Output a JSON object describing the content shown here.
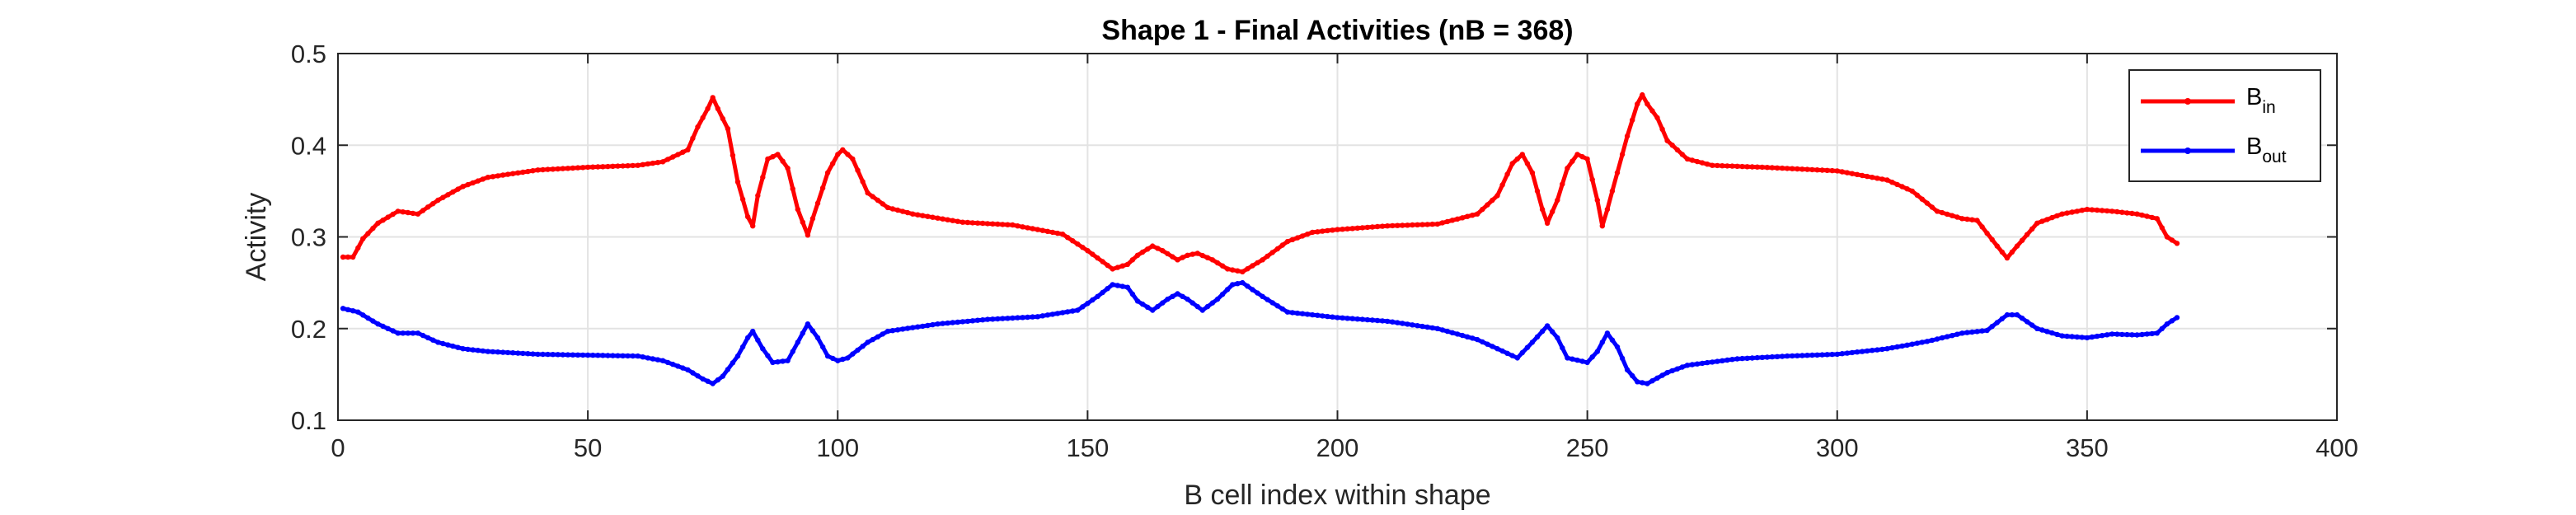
{
  "chart_data": {
    "type": "line",
    "title": "Shape 1 - Final Activities (nB = 368)",
    "xlabel": "B cell index within shape",
    "ylabel": "Activity",
    "xlim": [
      0,
      400
    ],
    "ylim": [
      0.1,
      0.5
    ],
    "xticks": [
      0,
      50,
      100,
      150,
      200,
      250,
      300,
      350,
      400
    ],
    "yticks": [
      0.1,
      0.2,
      0.3,
      0.4,
      0.5
    ],
    "xtick_labels": [
      "0",
      "50",
      "100",
      "150",
      "200",
      "250",
      "300",
      "350",
      "400"
    ],
    "ytick_labels": [
      "0.1",
      "0.2",
      "0.3",
      "0.4",
      "0.5"
    ],
    "grid": true,
    "legend_position": "top-right",
    "x_range": [
      1,
      368
    ],
    "series": [
      {
        "legend_main": "B",
        "legend_sub": "in",
        "color": "#ff0000",
        "control_points": [
          [
            1,
            0.278
          ],
          [
            3,
            0.278
          ],
          [
            5,
            0.298
          ],
          [
            8,
            0.315
          ],
          [
            12,
            0.328
          ],
          [
            16,
            0.325
          ],
          [
            20,
            0.34
          ],
          [
            25,
            0.355
          ],
          [
            30,
            0.365
          ],
          [
            40,
            0.373
          ],
          [
            50,
            0.376
          ],
          [
            60,
            0.378
          ],
          [
            65,
            0.382
          ],
          [
            70,
            0.395
          ],
          [
            72,
            0.42
          ],
          [
            74,
            0.44
          ],
          [
            75,
            0.452
          ],
          [
            76,
            0.44
          ],
          [
            78,
            0.418
          ],
          [
            80,
            0.36
          ],
          [
            82,
            0.322
          ],
          [
            83,
            0.312
          ],
          [
            84,
            0.345
          ],
          [
            86,
            0.385
          ],
          [
            88,
            0.39
          ],
          [
            90,
            0.375
          ],
          [
            92,
            0.33
          ],
          [
            94,
            0.302
          ],
          [
            95,
            0.32
          ],
          [
            98,
            0.37
          ],
          [
            100,
            0.39
          ],
          [
            101,
            0.395
          ],
          [
            103,
            0.385
          ],
          [
            106,
            0.348
          ],
          [
            110,
            0.332
          ],
          [
            115,
            0.325
          ],
          [
            125,
            0.316
          ],
          [
            135,
            0.313
          ],
          [
            145,
            0.303
          ],
          [
            150,
            0.285
          ],
          [
            155,
            0.265
          ],
          [
            158,
            0.27
          ],
          [
            160,
            0.28
          ],
          [
            163,
            0.29
          ],
          [
            165,
            0.285
          ],
          [
            168,
            0.275
          ],
          [
            170,
            0.28
          ],
          [
            172,
            0.282
          ],
          [
            175,
            0.275
          ],
          [
            178,
            0.265
          ],
          [
            181,
            0.262
          ],
          [
            185,
            0.275
          ],
          [
            190,
            0.295
          ],
          [
            195,
            0.305
          ],
          [
            200,
            0.308
          ],
          [
            210,
            0.312
          ],
          [
            220,
            0.314
          ],
          [
            228,
            0.325
          ],
          [
            232,
            0.345
          ],
          [
            235,
            0.38
          ],
          [
            237,
            0.39
          ],
          [
            239,
            0.37
          ],
          [
            241,
            0.33
          ],
          [
            242,
            0.315
          ],
          [
            244,
            0.34
          ],
          [
            246,
            0.375
          ],
          [
            248,
            0.39
          ],
          [
            250,
            0.385
          ],
          [
            252,
            0.34
          ],
          [
            253,
            0.312
          ],
          [
            254,
            0.33
          ],
          [
            256,
            0.37
          ],
          [
            258,
            0.41
          ],
          [
            260,
            0.445
          ],
          [
            261,
            0.455
          ],
          [
            262,
            0.445
          ],
          [
            264,
            0.43
          ],
          [
            266,
            0.405
          ],
          [
            270,
            0.385
          ],
          [
            275,
            0.378
          ],
          [
            285,
            0.376
          ],
          [
            300,
            0.372
          ],
          [
            310,
            0.362
          ],
          [
            315,
            0.35
          ],
          [
            320,
            0.328
          ],
          [
            325,
            0.32
          ],
          [
            328,
            0.318
          ],
          [
            332,
            0.29
          ],
          [
            334,
            0.277
          ],
          [
            336,
            0.29
          ],
          [
            340,
            0.315
          ],
          [
            345,
            0.325
          ],
          [
            350,
            0.33
          ],
          [
            355,
            0.328
          ],
          [
            360,
            0.325
          ],
          [
            364,
            0.32
          ],
          [
            366,
            0.3
          ],
          [
            368,
            0.293
          ]
        ]
      },
      {
        "legend_main": "B",
        "legend_sub": "out",
        "color": "#0000ff",
        "control_points": [
          [
            1,
            0.222
          ],
          [
            4,
            0.218
          ],
          [
            8,
            0.205
          ],
          [
            12,
            0.195
          ],
          [
            16,
            0.195
          ],
          [
            20,
            0.185
          ],
          [
            25,
            0.178
          ],
          [
            30,
            0.175
          ],
          [
            40,
            0.172
          ],
          [
            50,
            0.171
          ],
          [
            60,
            0.17
          ],
          [
            65,
            0.165
          ],
          [
            70,
            0.155
          ],
          [
            73,
            0.145
          ],
          [
            75,
            0.14
          ],
          [
            77,
            0.148
          ],
          [
            80,
            0.17
          ],
          [
            82,
            0.19
          ],
          [
            83,
            0.197
          ],
          [
            85,
            0.178
          ],
          [
            87,
            0.163
          ],
          [
            90,
            0.165
          ],
          [
            92,
            0.185
          ],
          [
            94,
            0.205
          ],
          [
            96,
            0.19
          ],
          [
            98,
            0.17
          ],
          [
            100,
            0.165
          ],
          [
            102,
            0.168
          ],
          [
            106,
            0.185
          ],
          [
            110,
            0.197
          ],
          [
            120,
            0.205
          ],
          [
            130,
            0.21
          ],
          [
            140,
            0.213
          ],
          [
            148,
            0.22
          ],
          [
            152,
            0.235
          ],
          [
            155,
            0.248
          ],
          [
            158,
            0.245
          ],
          [
            160,
            0.23
          ],
          [
            163,
            0.22
          ],
          [
            166,
            0.232
          ],
          [
            168,
            0.238
          ],
          [
            170,
            0.232
          ],
          [
            173,
            0.22
          ],
          [
            176,
            0.232
          ],
          [
            179,
            0.248
          ],
          [
            181,
            0.25
          ],
          [
            185,
            0.235
          ],
          [
            190,
            0.218
          ],
          [
            200,
            0.212
          ],
          [
            210,
            0.208
          ],
          [
            220,
            0.2
          ],
          [
            228,
            0.188
          ],
          [
            232,
            0.178
          ],
          [
            236,
            0.168
          ],
          [
            239,
            0.185
          ],
          [
            242,
            0.203
          ],
          [
            244,
            0.19
          ],
          [
            246,
            0.168
          ],
          [
            250,
            0.163
          ],
          [
            252,
            0.175
          ],
          [
            254,
            0.195
          ],
          [
            256,
            0.18
          ],
          [
            258,
            0.155
          ],
          [
            260,
            0.142
          ],
          [
            262,
            0.14
          ],
          [
            266,
            0.152
          ],
          [
            270,
            0.16
          ],
          [
            280,
            0.167
          ],
          [
            290,
            0.17
          ],
          [
            300,
            0.172
          ],
          [
            310,
            0.178
          ],
          [
            318,
            0.186
          ],
          [
            325,
            0.195
          ],
          [
            330,
            0.198
          ],
          [
            334,
            0.215
          ],
          [
            336,
            0.215
          ],
          [
            340,
            0.2
          ],
          [
            345,
            0.192
          ],
          [
            350,
            0.19
          ],
          [
            355,
            0.194
          ],
          [
            360,
            0.193
          ],
          [
            364,
            0.195
          ],
          [
            366,
            0.205
          ],
          [
            368,
            0.212
          ]
        ]
      }
    ]
  }
}
